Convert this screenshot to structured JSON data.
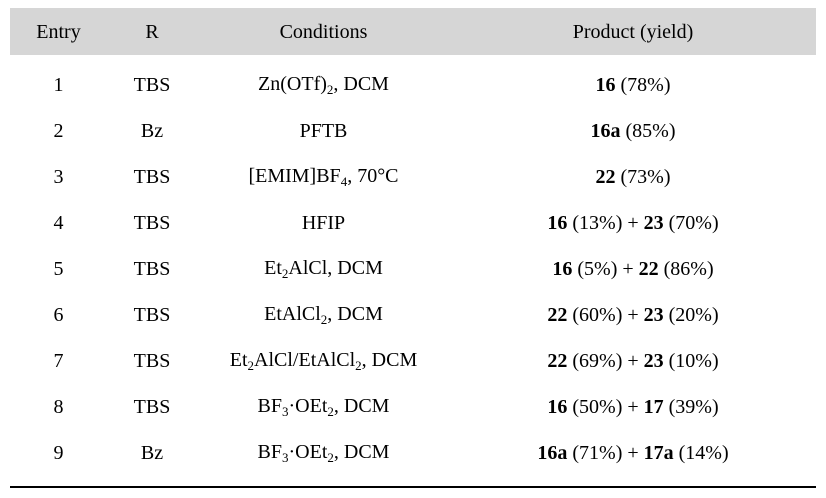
{
  "table": {
    "colors": {
      "header_bg": "#d6d6d6",
      "text": "#000000",
      "rule": "#000000"
    },
    "header": {
      "entry": "Entry",
      "r": "R",
      "conditions": "Conditions",
      "product": "Product (yield)"
    },
    "rows": [
      {
        "entry": "1",
        "r": "TBS",
        "conditions": [
          {
            "t": "Zn(OTf)"
          },
          {
            "t": "2",
            "sub": true
          },
          {
            "t": ", DCM"
          }
        ],
        "product": [
          {
            "t": "16",
            "b": true
          },
          {
            "t": " (78%)"
          }
        ]
      },
      {
        "entry": "2",
        "r": "Bz",
        "conditions": [
          {
            "t": "PFTB"
          }
        ],
        "product": [
          {
            "t": "16a",
            "b": true
          },
          {
            "t": " (85%)"
          }
        ]
      },
      {
        "entry": "3",
        "r": "TBS",
        "conditions": [
          {
            "t": "[EMIM]BF"
          },
          {
            "t": "4",
            "sub": true
          },
          {
            "t": ", 70°C"
          }
        ],
        "product": [
          {
            "t": "22",
            "b": true
          },
          {
            "t": " (73%)"
          }
        ]
      },
      {
        "entry": "4",
        "r": "TBS",
        "conditions": [
          {
            "t": "HFIP"
          }
        ],
        "product": [
          {
            "t": "16",
            "b": true
          },
          {
            "t": " (13%) + "
          },
          {
            "t": "23",
            "b": true
          },
          {
            "t": " (70%)"
          }
        ]
      },
      {
        "entry": "5",
        "r": "TBS",
        "conditions": [
          {
            "t": "Et"
          },
          {
            "t": "2",
            "sub": true
          },
          {
            "t": "AlCl, DCM"
          }
        ],
        "product": [
          {
            "t": "16",
            "b": true
          },
          {
            "t": " (5%) + "
          },
          {
            "t": "22",
            "b": true
          },
          {
            "t": " (86%)"
          }
        ]
      },
      {
        "entry": "6",
        "r": "TBS",
        "conditions": [
          {
            "t": "EtAlCl"
          },
          {
            "t": "2",
            "sub": true
          },
          {
            "t": ", DCM"
          }
        ],
        "product": [
          {
            "t": "22",
            "b": true
          },
          {
            "t": " (60%) + "
          },
          {
            "t": "23",
            "b": true
          },
          {
            "t": " (20%)"
          }
        ]
      },
      {
        "entry": "7",
        "r": "TBS",
        "conditions": [
          {
            "t": "Et"
          },
          {
            "t": "2",
            "sub": true
          },
          {
            "t": "AlCl/EtAlCl"
          },
          {
            "t": "2",
            "sub": true
          },
          {
            "t": ", DCM"
          }
        ],
        "product": [
          {
            "t": "22",
            "b": true
          },
          {
            "t": " (69%) + "
          },
          {
            "t": "23",
            "b": true
          },
          {
            "t": " (10%)"
          }
        ]
      },
      {
        "entry": "8",
        "r": "TBS",
        "conditions": [
          {
            "t": "BF"
          },
          {
            "t": "3",
            "sub": true
          },
          {
            "t": "·OEt"
          },
          {
            "t": "2",
            "sub": true
          },
          {
            "t": ", DCM"
          }
        ],
        "product": [
          {
            "t": "16",
            "b": true
          },
          {
            "t": " (50%) + "
          },
          {
            "t": "17",
            "b": true
          },
          {
            "t": " (39%)"
          }
        ]
      },
      {
        "entry": "9",
        "r": "Bz",
        "conditions": [
          {
            "t": "BF"
          },
          {
            "t": "3",
            "sub": true
          },
          {
            "t": "·OEt"
          },
          {
            "t": "2",
            "sub": true
          },
          {
            "t": ", DCM"
          }
        ],
        "product": [
          {
            "t": "16a",
            "b": true
          },
          {
            "t": " (71%) + "
          },
          {
            "t": "17a",
            "b": true
          },
          {
            "t": " (14%)"
          }
        ]
      }
    ]
  }
}
